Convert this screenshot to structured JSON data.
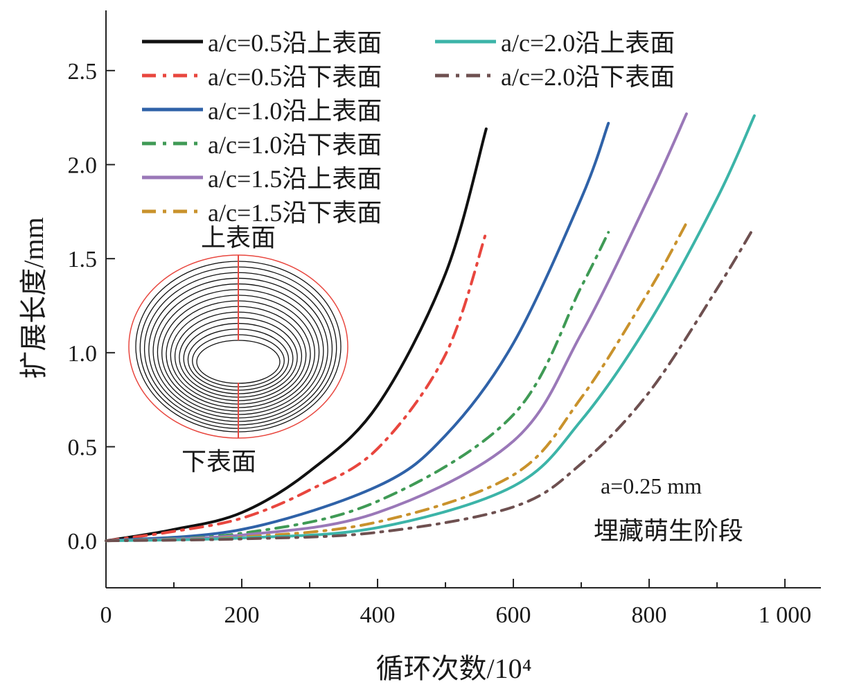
{
  "chart_data": {
    "type": "line",
    "title": "",
    "xlabel": "循环次数/10⁴",
    "ylabel": "扩展长度/mm",
    "xlim": [
      0,
      1053
    ],
    "ylim": [
      -0.25,
      2.82
    ],
    "xticks": [
      {
        "v": 0,
        "label": "0"
      },
      {
        "v": 200,
        "label": "200"
      },
      {
        "v": 400,
        "label": "400"
      },
      {
        "v": 600,
        "label": "600"
      },
      {
        "v": 800,
        "label": "800"
      },
      {
        "v": 1000,
        "label": "1 000"
      }
    ],
    "yticks": [
      {
        "v": 0,
        "label": "0.0"
      },
      {
        "v": 0.5,
        "label": "0.5"
      },
      {
        "v": 1.0,
        "label": "1.0"
      },
      {
        "v": 1.5,
        "label": "1.5"
      },
      {
        "v": 2.0,
        "label": "2.0"
      },
      {
        "v": 2.5,
        "label": "2.5"
      }
    ],
    "legend_position": "top-left",
    "series": [
      {
        "name": "a/c=0.5沿上表面",
        "prefix": "a/c=0.5",
        "suffix": "沿上表面",
        "color": "#111111",
        "style": "solid",
        "x": [
          0,
          100,
          200,
          300,
          400,
          500,
          560
        ],
        "y": [
          0,
          0.06,
          0.15,
          0.37,
          0.72,
          1.42,
          2.19
        ]
      },
      {
        "name": "a/c=0.5沿下表面",
        "prefix": "a/c=0.5",
        "suffix": "沿下表面",
        "color": "#e8463e",
        "style": "dashdot",
        "x": [
          0,
          100,
          200,
          300,
          400,
          500,
          560
        ],
        "y": [
          0,
          0.05,
          0.12,
          0.27,
          0.49,
          0.99,
          1.64
        ]
      },
      {
        "name": "a/c=1.0沿上表面",
        "prefix": "a/c=1.0",
        "suffix": "沿上表面",
        "color": "#2f62a8",
        "style": "solid",
        "x": [
          0,
          200,
          400,
          500,
          600,
          700,
          740
        ],
        "y": [
          0,
          0.06,
          0.29,
          0.56,
          1.05,
          1.82,
          2.22
        ]
      },
      {
        "name": "a/c=1.0沿下表面",
        "prefix": "a/c=1.0",
        "suffix": "沿下表面",
        "color": "#3f9a55",
        "style": "dashdot",
        "x": [
          0,
          200,
          400,
          600,
          700,
          740
        ],
        "y": [
          0,
          0.04,
          0.21,
          0.67,
          1.35,
          1.64
        ]
      },
      {
        "name": "a/c=1.5沿上表面",
        "prefix": "a/c=1.5",
        "suffix": "沿上表面",
        "color": "#9a78b8",
        "style": "solid",
        "x": [
          0,
          200,
          400,
          600,
          700,
          800,
          855
        ],
        "y": [
          0,
          0.03,
          0.15,
          0.53,
          1.1,
          1.83,
          2.27
        ]
      },
      {
        "name": "a/c=1.5沿下表面",
        "prefix": "a/c=1.5",
        "suffix": "沿下表面",
        "color": "#c9922c",
        "style": "dashdot",
        "x": [
          0,
          200,
          400,
          600,
          700,
          800,
          855
        ],
        "y": [
          0,
          0.02,
          0.1,
          0.35,
          0.76,
          1.33,
          1.69
        ]
      },
      {
        "name": "a/c=2.0沿上表面",
        "prefix": "a/c=2.0",
        "suffix": "沿上表面",
        "color": "#3cb4a8",
        "style": "solid",
        "x": [
          0,
          200,
          400,
          600,
          700,
          800,
          900,
          955
        ],
        "y": [
          0,
          0.015,
          0.07,
          0.29,
          0.64,
          1.16,
          1.82,
          2.26
        ]
      },
      {
        "name": "a/c=2.0沿下表面",
        "prefix": "a/c=2.0",
        "suffix": "沿下表面",
        "color": "#6e5050",
        "style": "dashdot",
        "x": [
          0,
          200,
          400,
          600,
          700,
          800,
          900,
          955
        ],
        "y": [
          0,
          0.01,
          0.045,
          0.18,
          0.41,
          0.79,
          1.34,
          1.67
        ]
      }
    ],
    "annotations": {
      "a_value": "a=0.25 mm",
      "a_italic": "a",
      "a_rest": "=0.25 mm",
      "stage": "埋藏萌生阶段"
    },
    "inset": {
      "top_label": "上表面",
      "bottom_label": "下表面"
    }
  }
}
